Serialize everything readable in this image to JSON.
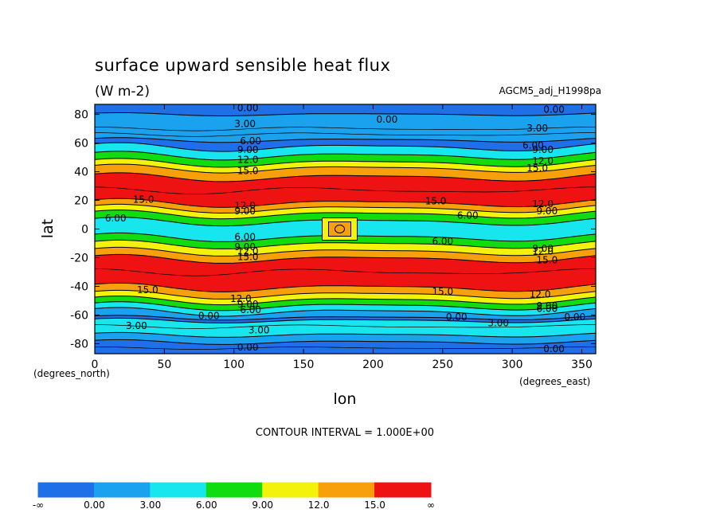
{
  "chart_data": {
    "type": "contour",
    "title": "surface upward sensible heat flux",
    "units": "(W m-2)",
    "model": "AGCM5_adj_H1998pa",
    "xlabel": "lon",
    "ylabel": "lat",
    "x_unit_note": "(degrees_east)",
    "y_unit_note": "(degrees_north)",
    "xlim": [
      0,
      360
    ],
    "ylim": [
      -87,
      87
    ],
    "xticks": [
      "0",
      "50",
      "100",
      "150",
      "200",
      "250",
      "300",
      "350"
    ],
    "yticks": [
      "80",
      "60",
      "40",
      "20",
      "0",
      "-20",
      "-40",
      "-60",
      "-80"
    ],
    "contour_interval": "CONTOUR INTERVAL = 1.000E+00",
    "colorbar": {
      "labels": [
        "-∞",
        "0.00",
        "3.00",
        "6.00",
        "9.00",
        "12.0",
        "15.0",
        "∞"
      ],
      "colors": [
        "#1f6fe8",
        "#1aa2ee",
        "#17e6ee",
        "#10dc10",
        "#f2f20a",
        "#f7a00b",
        "#ee1212"
      ]
    },
    "contour_labels": [
      "0.00",
      "3.00",
      "6.00",
      "9.00",
      "12.0",
      "15.0"
    ]
  }
}
